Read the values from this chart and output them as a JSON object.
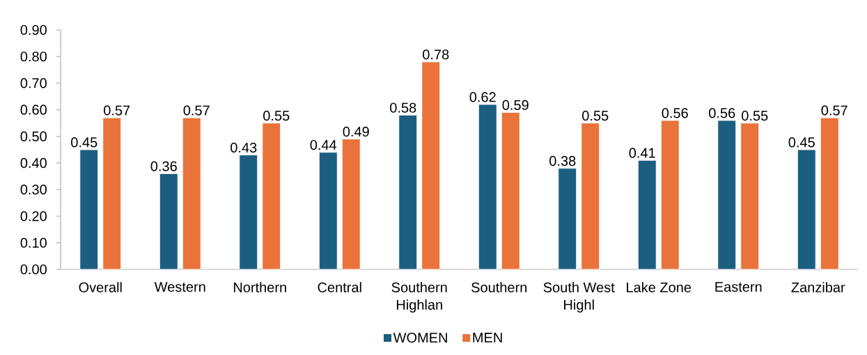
{
  "chart_data": {
    "type": "bar",
    "categories": [
      "Overall",
      "Western",
      "Northern",
      "Central",
      "Southern Highlan",
      "Southern",
      "South West Highl",
      "Lake Zone",
      "Eastern",
      "Zanzibar"
    ],
    "series": [
      {
        "name": "WOMEN",
        "color": "#1b5e80",
        "values": [
          0.45,
          0.36,
          0.43,
          0.44,
          0.58,
          0.62,
          0.38,
          0.41,
          0.56,
          0.45
        ]
      },
      {
        "name": "MEN",
        "color": "#e9733a",
        "values": [
          0.57,
          0.57,
          0.55,
          0.49,
          0.78,
          0.59,
          0.55,
          0.56,
          0.55,
          0.57
        ]
      }
    ],
    "ylim": [
      0,
      0.9
    ],
    "yticks": [
      {
        "value": 0,
        "label": "0.00"
      },
      {
        "value": 0.1,
        "label": "0.10"
      },
      {
        "value": 0.2,
        "label": "0.20"
      },
      {
        "value": 0.3,
        "label": "0.30"
      },
      {
        "value": 0.4,
        "label": "0.40"
      },
      {
        "value": 0.5,
        "label": "0.50"
      },
      {
        "value": 0.6,
        "label": "0.60"
      },
      {
        "value": 0.7,
        "label": "0.70"
      },
      {
        "value": 0.8,
        "label": "0.80"
      },
      {
        "value": 0.9,
        "label": "0.90"
      }
    ],
    "data_labels": true,
    "legend": "bottom"
  }
}
